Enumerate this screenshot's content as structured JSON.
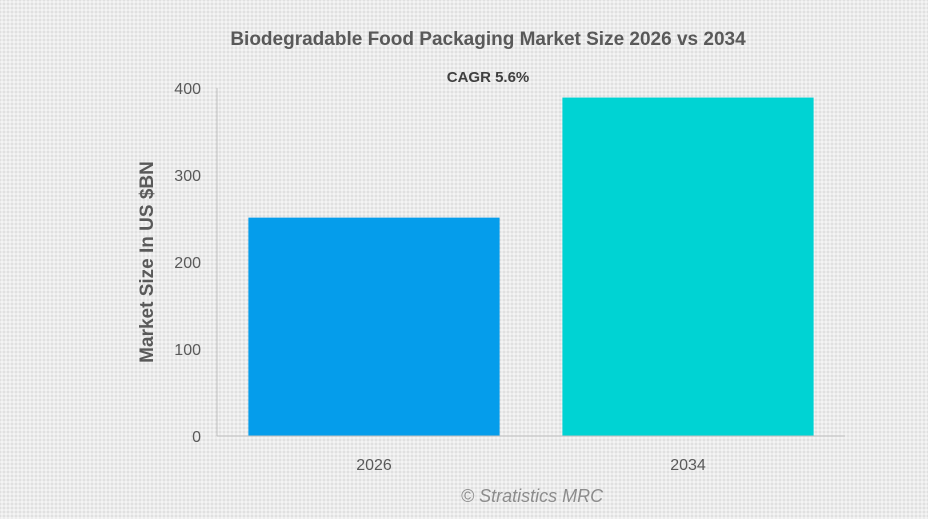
{
  "chart_data": {
    "type": "bar",
    "title": "Biodegradable Food Packaging Market Size 2026 vs 2034",
    "annotation": "CAGR 5.6%",
    "xlabel": "",
    "ylabel": "Market Size In US $BN",
    "categories": [
      "2026",
      "2034"
    ],
    "values": [
      251,
      389
    ],
    "bar_colors": [
      "#059deb",
      "#00d3d3"
    ],
    "ylim": [
      0,
      400
    ],
    "yticks": [
      0,
      100,
      200,
      300,
      400
    ],
    "grid": false,
    "legend": "none"
  },
  "watermark": "© Stratistics MRC"
}
